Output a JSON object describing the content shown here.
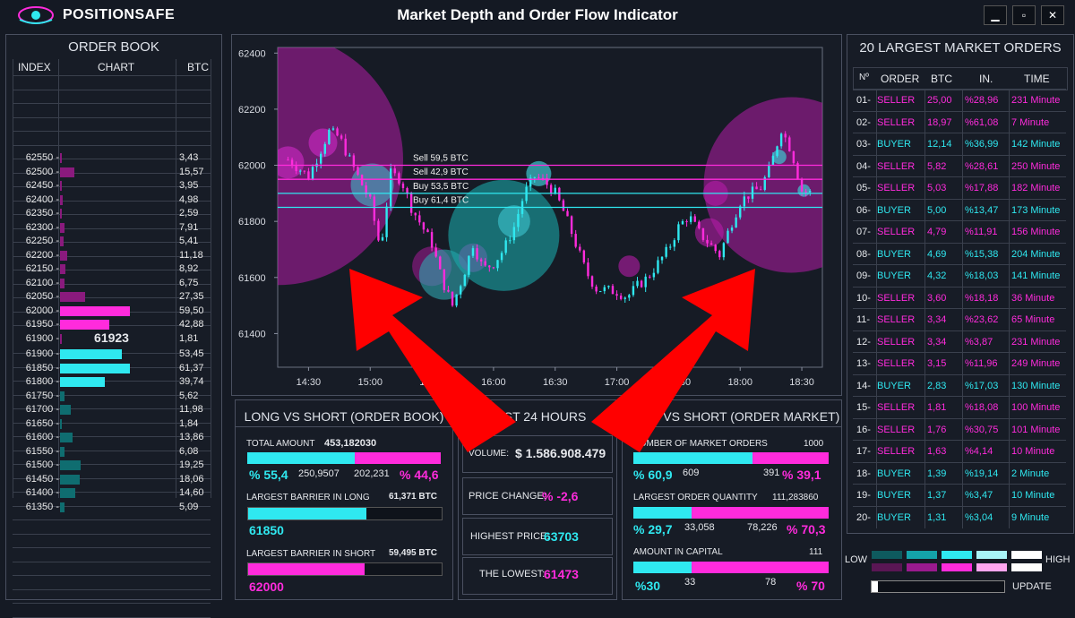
{
  "app": {
    "brand": "POSITIONSAFE",
    "title": "Market Depth and Order Flow Indicator"
  },
  "window": {
    "minimize": "▁",
    "maximize": "▫",
    "close": "✕"
  },
  "orderbook": {
    "title": "ORDER BOOK",
    "headers": [
      "INDEX",
      "CHART",
      "BTC"
    ],
    "asks": [
      {
        "index": "62550 -",
        "btc": "3,43",
        "pct": 3
      },
      {
        "index": "62500 -",
        "btc": "15,57",
        "pct": 20
      },
      {
        "index": "62450 -",
        "btc": "3,95",
        "pct": 3
      },
      {
        "index": "62400 -",
        "btc": "4,98",
        "pct": 4
      },
      {
        "index": "62350 -",
        "btc": "2,59",
        "pct": 2
      },
      {
        "index": "62300 -",
        "btc": "7,91",
        "pct": 7
      },
      {
        "index": "62250 -",
        "btc": "5,41",
        "pct": 5
      },
      {
        "index": "62200 -",
        "btc": "11,18",
        "pct": 10
      },
      {
        "index": "62150 -",
        "btc": "8,92",
        "pct": 8
      },
      {
        "index": "62100 -",
        "btc": "6,75",
        "pct": 6
      },
      {
        "index": "62050 -",
        "btc": "27,35",
        "pct": 36
      },
      {
        "index": "62000 -",
        "btc": "59,50",
        "pct": 100
      },
      {
        "index": "61950 -",
        "btc": "42,88",
        "pct": 70
      },
      {
        "index": "61900 -",
        "btc": "1,81",
        "pct": 2
      }
    ],
    "mid_price": "61923",
    "bids": [
      {
        "index": "61900 -",
        "btc": "53,45",
        "pct": 88
      },
      {
        "index": "61850 -",
        "btc": "61,37",
        "pct": 100
      },
      {
        "index": "61800 -",
        "btc": "39,74",
        "pct": 64
      },
      {
        "index": "61750 -",
        "btc": "5,62",
        "pct": 6
      },
      {
        "index": "61700 -",
        "btc": "11,98",
        "pct": 16
      },
      {
        "index": "61650 -",
        "btc": "1,84",
        "pct": 3
      },
      {
        "index": "61600 -",
        "btc": "13,86",
        "pct": 18
      },
      {
        "index": "61550 -",
        "btc": "6,08",
        "pct": 7
      },
      {
        "index": "61500 -",
        "btc": "19,25",
        "pct": 30
      },
      {
        "index": "61450 -",
        "btc": "18,06",
        "pct": 28
      },
      {
        "index": "61400 -",
        "btc": "14,60",
        "pct": 22
      },
      {
        "index": "61350 -",
        "btc": "5,09",
        "pct": 6
      }
    ]
  },
  "chart": {
    "y_ticks": [
      "62400",
      "62200",
      "62000",
      "61800",
      "61600",
      "61400"
    ],
    "x_ticks": [
      "14:30",
      "15:00",
      "15:30",
      "16:00",
      "16:30",
      "17:00",
      "17:30",
      "18:00",
      "18:30"
    ],
    "levels": [
      {
        "label": "Sell 59,5 BTC",
        "value": 62000,
        "color": "#ff2bdc"
      },
      {
        "label": "Sell 42,9 BTC",
        "value": 61950,
        "color": "#ff2bdc"
      },
      {
        "label": "Buy 53,5 BTC",
        "value": 61900,
        "color": "#2fe8f0"
      },
      {
        "label": "Buy 61,4 BTC",
        "value": 61850,
        "color": "#2fe8f0"
      }
    ]
  },
  "chart_data": {
    "type": "line",
    "x": [
      "14:20",
      "14:30",
      "14:40",
      "14:45",
      "14:50",
      "15:00",
      "15:05",
      "15:10",
      "15:15",
      "15:20",
      "15:30",
      "15:35",
      "15:40",
      "15:45",
      "15:50",
      "15:55",
      "16:00",
      "16:05",
      "16:10",
      "16:15",
      "16:20",
      "16:25",
      "16:30",
      "16:35",
      "16:40",
      "16:45",
      "16:50",
      "17:00",
      "17:05",
      "17:10",
      "17:15",
      "17:20",
      "17:25",
      "17:30",
      "17:35",
      "17:40",
      "17:50",
      "17:55",
      "18:00",
      "18:05",
      "18:10",
      "18:15",
      "18:20",
      "18:25",
      "18:30",
      "18:35"
    ],
    "values": [
      62020,
      61960,
      62120,
      62100,
      62020,
      61870,
      61700,
      61970,
      61950,
      61850,
      61720,
      61590,
      61500,
      61600,
      61720,
      61630,
      61650,
      61700,
      61780,
      61900,
      61960,
      61940,
      61900,
      61820,
      61720,
      61620,
      61560,
      61550,
      61530,
      61570,
      61600,
      61650,
      61700,
      61780,
      61820,
      61760,
      61680,
      61780,
      61870,
      61900,
      61920,
      62000,
      62130,
      62050,
      61910,
      61900
    ],
    "ylim": [
      61280,
      62420
    ]
  },
  "long_short_book": {
    "title": "LONG VS SHORT (ORDER BOOK)",
    "total_label": "TOTAL AMOUNT",
    "total_value": "453,182030",
    "long_pct": "% 55,4",
    "long_amount": "250,9507",
    "short_amount": "202,231",
    "short_pct": "% 44,6",
    "long_share": 55.4,
    "barrier_long_label": "LARGEST BARRIER IN LONG",
    "barrier_long_btc": "61,371 BTC",
    "barrier_long_price": "61850",
    "barrier_long_fill": 61,
    "barrier_short_label": "LARGEST BARRIER IN SHORT",
    "barrier_short_btc": "59,495 BTC",
    "barrier_short_price": "62000",
    "barrier_short_fill": 60
  },
  "last24": {
    "title": "LAST 24 HOURS",
    "volume_label": "VOLUME:",
    "volume_value": "$ 1.586.908.479",
    "change_label": "PRICE CHANGE:",
    "change_value": "% -2,6",
    "high_label": "HIGHEST PRICE:",
    "high_value": "63703",
    "low_label": "THE LOWEST:",
    "low_value": "61473"
  },
  "long_short_market": {
    "title": "LONG VS SHORT (ORDER MARKET)",
    "orders_label": "NUMBER OF MARKET ORDERS",
    "orders_total": "1000",
    "orders_long_pct": "% 60,9",
    "orders_long": "609",
    "orders_short": "391",
    "orders_short_pct": "% 39,1",
    "orders_share": 60.9,
    "qty_label": "LARGEST ORDER QUANTITY",
    "qty_total": "111,283860",
    "qty_long_pct": "% 29,7",
    "qty_long": "33,058",
    "qty_short": "78,226",
    "qty_short_pct": "% 70,3",
    "qty_share": 29.7,
    "cap_label": "AMOUNT IN CAPITAL",
    "cap_total": "111",
    "cap_long_pct": "%30",
    "cap_long": "33",
    "cap_short": "78",
    "cap_short_pct": "% 70",
    "cap_share": 30
  },
  "largest_orders": {
    "title": "20 LARGEST MARKET ORDERS",
    "headers": [
      "Nº",
      "ORDER",
      "BTC",
      "IN.",
      "TIME"
    ],
    "rows": [
      [
        "01-",
        "SELLER",
        "25,00",
        "%28,96",
        "231 Minute"
      ],
      [
        "02-",
        "SELLER",
        "18,97",
        "%61,08",
        "7 Minute"
      ],
      [
        "03-",
        "BUYER",
        "12,14",
        "%36,99",
        "142 Minute"
      ],
      [
        "04-",
        "SELLER",
        "5,82",
        "%28,61",
        "250 Minute"
      ],
      [
        "05-",
        "SELLER",
        "5,03",
        "%17,88",
        "182 Minute"
      ],
      [
        "06-",
        "BUYER",
        "5,00",
        "%13,47",
        "173 Minute"
      ],
      [
        "07-",
        "SELLER",
        "4,79",
        "%11,91",
        "156 Minute"
      ],
      [
        "08-",
        "BUYER",
        "4,69",
        "%15,38",
        "204 Minute"
      ],
      [
        "09-",
        "BUYER",
        "4,32",
        "%18,03",
        "141 Minute"
      ],
      [
        "10-",
        "SELLER",
        "3,60",
        "%18,18",
        "36 Minute"
      ],
      [
        "11-",
        "SELLER",
        "3,34",
        "%23,62",
        "65 Minute"
      ],
      [
        "12-",
        "SELLER",
        "3,34",
        "%3,87",
        "231 Minute"
      ],
      [
        "13-",
        "SELLER",
        "3,15",
        "%11,96",
        "249 Minute"
      ],
      [
        "14-",
        "BUYER",
        "2,83",
        "%17,03",
        "130 Minute"
      ],
      [
        "15-",
        "SELLER",
        "1,81",
        "%18,08",
        "100 Minute"
      ],
      [
        "16-",
        "SELLER",
        "1,76",
        "%30,75",
        "101 Minute"
      ],
      [
        "17-",
        "SELLER",
        "1,63",
        "%4,14",
        "10 Minute"
      ],
      [
        "18-",
        "BUYER",
        "1,39",
        "%19,14",
        "2 Minute"
      ],
      [
        "19-",
        "BUYER",
        "1,37",
        "%3,47",
        "10 Minute"
      ],
      [
        "20-",
        "BUYER",
        "1,31",
        "%3,04",
        "9 Minute"
      ]
    ]
  },
  "legend": {
    "low": "LOW",
    "high": "HIGH",
    "update": "UPDATE",
    "update_progress": 5
  },
  "colors": {
    "cyan": "#2fe8f0",
    "magenta": "#ff2bdc",
    "arrow": "#ff0000",
    "background": "#151a24"
  }
}
